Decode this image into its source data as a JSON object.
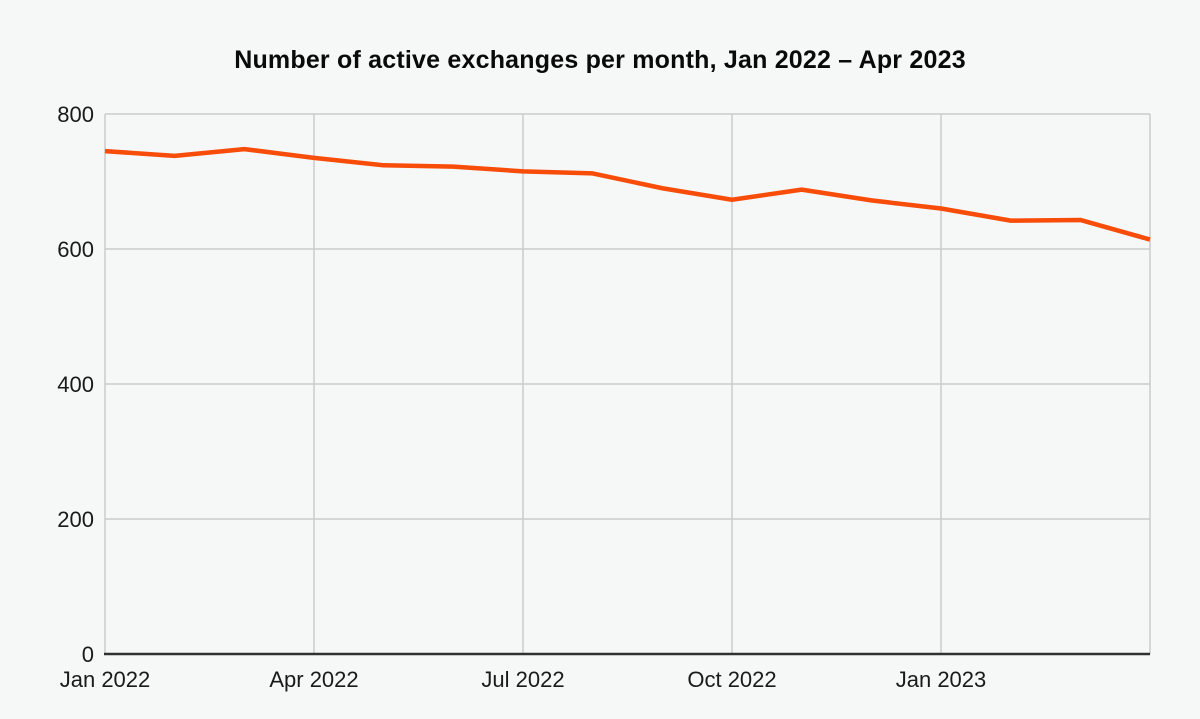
{
  "colors": {
    "line": "#F84C09",
    "grid": "#CCCCCC",
    "axis": "#303030",
    "background": "#F6F7F7",
    "text": "#1A1A1A",
    "title_text": "#0A0A0A"
  },
  "chart_data": {
    "type": "line",
    "title": "Number of active exchanges per month, Jan 2022 – Apr 2023",
    "x": [
      "Jan 2022",
      "Feb 2022",
      "Mar 2022",
      "Apr 2022",
      "May 2022",
      "Jun 2022",
      "Jul 2022",
      "Aug 2022",
      "Sep 2022",
      "Oct 2022",
      "Nov 2022",
      "Dec 2022",
      "Jan 2023",
      "Feb 2023",
      "Mar 2023",
      "Apr 2023"
    ],
    "values": [
      745,
      738,
      748,
      735,
      724,
      722,
      715,
      712,
      690,
      673,
      688,
      672,
      660,
      642,
      643,
      614
    ],
    "ylabel": "",
    "xlabel": "",
    "ylim": [
      0,
      800
    ],
    "yticks": [
      0,
      200,
      400,
      600,
      800
    ],
    "ytick_labels": [
      "0",
      "200",
      "400",
      "600",
      "800"
    ],
    "xtick_labels": [
      "Jan 2022",
      "Apr 2022",
      "Jul 2022",
      "Oct 2022",
      "Jan 2023"
    ],
    "xtick_month_indices": [
      0,
      3,
      6,
      9,
      12
    ],
    "grid_month_indices": [
      0,
      3,
      6,
      9,
      12,
      15
    ],
    "grid": true,
    "legend": false
  }
}
